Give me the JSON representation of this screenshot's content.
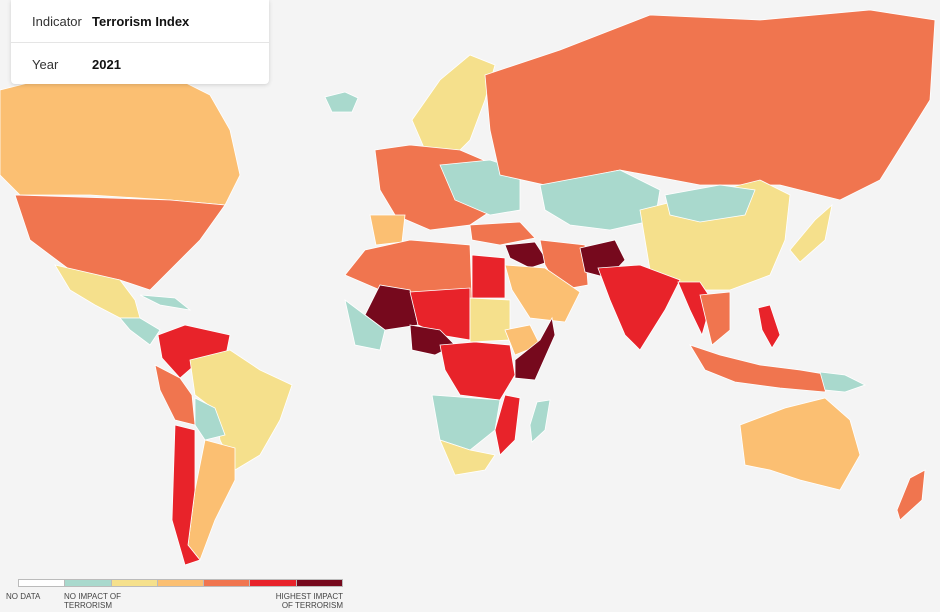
{
  "panel": {
    "rows": [
      {
        "label": "Indicator",
        "value": "Terrorism Index"
      },
      {
        "label": "Year",
        "value": "2021"
      }
    ]
  },
  "legend": {
    "colors": [
      "#ffffff",
      "#a9d9cd",
      "#f5e08c",
      "#fbbf72",
      "#f0754f",
      "#e8232a",
      "#76091d"
    ],
    "no_data": "NO DATA",
    "low": "NO IMPACT OF TERRORISM",
    "high": "HIGHEST IMPACT OF TERRORISM"
  }
}
